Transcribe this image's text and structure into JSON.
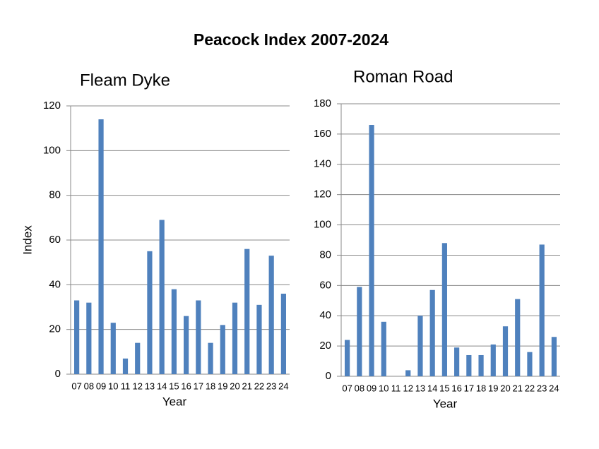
{
  "title": "Peacock Index 2007-2024",
  "chart_data": [
    {
      "type": "bar",
      "title": "Fleam Dyke",
      "xlabel": "Year",
      "ylabel": "Index",
      "categories": [
        "07",
        "08",
        "09",
        "10",
        "11",
        "12",
        "13",
        "14",
        "15",
        "16",
        "17",
        "18",
        "19",
        "20",
        "21",
        "22",
        "23",
        "24"
      ],
      "values": [
        33,
        32,
        114,
        23,
        7,
        14,
        55,
        69,
        38,
        26,
        33,
        14,
        22,
        32,
        56,
        31,
        53,
        36
      ],
      "color": "#4f81bd",
      "ylim": [
        0,
        120
      ],
      "yticks": [
        0,
        20,
        40,
        60,
        80,
        100,
        120
      ],
      "grid": true
    },
    {
      "type": "bar",
      "title": "Roman Road",
      "xlabel": "Year",
      "categories": [
        "07",
        "08",
        "09",
        "10",
        "11",
        "12",
        "13",
        "14",
        "15",
        "16",
        "17",
        "18",
        "19",
        "20",
        "21",
        "22",
        "23",
        "24"
      ],
      "values": [
        24,
        59,
        166,
        36,
        0,
        4,
        40,
        57,
        88,
        19,
        14,
        14,
        21,
        33,
        51,
        16,
        87,
        26
      ],
      "color": "#4f81bd",
      "ylim": [
        0,
        180
      ],
      "yticks": [
        0,
        20,
        40,
        60,
        80,
        100,
        120,
        140,
        160,
        180
      ],
      "grid": true
    }
  ]
}
